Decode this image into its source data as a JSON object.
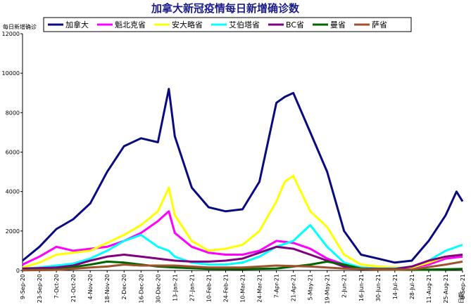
{
  "chart_data": {
    "type": "line",
    "title": "加拿大新冠疫情每日新增确诊数",
    "ylabel": "每日新增确诊",
    "xlabel_suffix": "日期",
    "ylim": [
      0,
      12000
    ],
    "yticks": [
      0,
      2000,
      4000,
      6000,
      8000,
      10000,
      12000
    ],
    "x_range": [
      "2020-09-09",
      "2021-09-08"
    ],
    "xticks": [
      "9-Sep-20",
      "23-Sep-20",
      "7-Oct-20",
      "21-Oct-20",
      "4-Nov-20",
      "18-Nov-20",
      "2-Dec-20",
      "16-Dec-20",
      "30-Dec-20",
      "13-Jan-21",
      "27-Jan-21",
      "10-Feb-21",
      "24-Feb-21",
      "10-Mar-21",
      "24-Mar-21",
      "7-Apr-21",
      "21-Apr-21",
      "5-May-21",
      "19-May-21",
      "2-Jun-21",
      "16-Jun-21",
      "30-Jun-21",
      "14-Jul-21",
      "28-Jul-21",
      "11-Aug-21",
      "25-Aug-21",
      "8-Sep-21"
    ],
    "grid": false,
    "legend_position": "top",
    "series": [
      {
        "name": "加拿大",
        "color": "#0a0a80",
        "x": [
          "2020-09-09",
          "2020-09-23",
          "2020-10-07",
          "2020-10-21",
          "2020-11-04",
          "2020-11-18",
          "2020-12-02",
          "2020-12-16",
          "2020-12-30",
          "2021-01-08",
          "2021-01-13",
          "2021-01-27",
          "2021-02-10",
          "2021-02-24",
          "2021-03-10",
          "2021-03-24",
          "2021-04-07",
          "2021-04-14",
          "2021-04-21",
          "2021-05-05",
          "2021-05-19",
          "2021-06-02",
          "2021-06-16",
          "2021-06-30",
          "2021-07-14",
          "2021-07-28",
          "2021-08-11",
          "2021-08-25",
          "2021-09-03",
          "2021-09-08"
        ],
        "values": [
          500,
          1200,
          2100,
          2600,
          3400,
          5000,
          6300,
          6700,
          6500,
          9200,
          6800,
          4200,
          3200,
          3000,
          3100,
          4500,
          8500,
          8800,
          9000,
          7000,
          5000,
          2000,
          800,
          600,
          400,
          500,
          1500,
          2800,
          4000,
          3500
        ]
      },
      {
        "name": "魁北克省",
        "color": "#ff00ff",
        "x": [
          "2020-09-09",
          "2020-09-23",
          "2020-10-07",
          "2020-10-21",
          "2020-11-04",
          "2020-11-18",
          "2020-12-02",
          "2020-12-16",
          "2020-12-30",
          "2021-01-08",
          "2021-01-13",
          "2021-01-27",
          "2021-02-10",
          "2021-02-24",
          "2021-03-10",
          "2021-03-24",
          "2021-04-07",
          "2021-04-21",
          "2021-05-05",
          "2021-05-19",
          "2021-06-02",
          "2021-06-16",
          "2021-06-30",
          "2021-07-14",
          "2021-07-28",
          "2021-08-11",
          "2021-08-25",
          "2021-09-08"
        ],
        "values": [
          300,
          700,
          1200,
          1000,
          1100,
          1200,
          1500,
          1900,
          2500,
          3000,
          1900,
          1200,
          900,
          800,
          800,
          1000,
          1500,
          1400,
          1100,
          600,
          300,
          150,
          100,
          100,
          150,
          300,
          600,
          700
        ]
      },
      {
        "name": "安大略省",
        "color": "#ffff00",
        "x": [
          "2020-09-09",
          "2020-09-23",
          "2020-10-07",
          "2020-10-21",
          "2020-11-04",
          "2020-11-18",
          "2020-12-02",
          "2020-12-16",
          "2020-12-30",
          "2021-01-08",
          "2021-01-13",
          "2021-01-27",
          "2021-02-10",
          "2021-02-24",
          "2021-03-10",
          "2021-03-24",
          "2021-04-07",
          "2021-04-14",
          "2021-04-21",
          "2021-05-05",
          "2021-05-19",
          "2021-06-02",
          "2021-06-16",
          "2021-06-30",
          "2021-07-14",
          "2021-07-28",
          "2021-08-11",
          "2021-08-25",
          "2021-09-08"
        ],
        "values": [
          150,
          400,
          800,
          900,
          1000,
          1400,
          1800,
          2300,
          3000,
          4200,
          2800,
          1500,
          1000,
          1100,
          1300,
          2000,
          3500,
          4500,
          4800,
          3000,
          2200,
          800,
          300,
          200,
          150,
          150,
          400,
          700,
          800
        ]
      },
      {
        "name": "艾伯塔省",
        "color": "#00ffff",
        "x": [
          "2020-09-09",
          "2020-09-23",
          "2020-10-07",
          "2020-10-21",
          "2020-11-04",
          "2020-11-18",
          "2020-12-02",
          "2020-12-16",
          "2020-12-30",
          "2021-01-08",
          "2021-01-13",
          "2021-01-27",
          "2021-02-10",
          "2021-02-24",
          "2021-03-10",
          "2021-03-24",
          "2021-04-07",
          "2021-04-21",
          "2021-05-05",
          "2021-05-19",
          "2021-06-02",
          "2021-06-16",
          "2021-06-30",
          "2021-07-14",
          "2021-07-28",
          "2021-08-11",
          "2021-08-25",
          "2021-09-08"
        ],
        "values": [
          100,
          150,
          250,
          350,
          600,
          1000,
          1500,
          1800,
          1200,
          1000,
          700,
          400,
          300,
          300,
          400,
          700,
          1200,
          1500,
          2300,
          1200,
          400,
          150,
          100,
          100,
          200,
          500,
          1000,
          1300
        ]
      },
      {
        "name": "BC省",
        "color": "#800080",
        "x": [
          "2020-09-09",
          "2020-09-23",
          "2020-10-07",
          "2020-10-21",
          "2020-11-04",
          "2020-11-18",
          "2020-12-02",
          "2020-12-16",
          "2020-12-30",
          "2021-01-13",
          "2021-01-27",
          "2021-02-10",
          "2021-02-24",
          "2021-03-10",
          "2021-03-24",
          "2021-04-07",
          "2021-04-21",
          "2021-05-05",
          "2021-05-19",
          "2021-06-02",
          "2021-06-16",
          "2021-06-30",
          "2021-07-14",
          "2021-07-28",
          "2021-08-11",
          "2021-08-25",
          "2021-09-08"
        ],
        "values": [
          100,
          120,
          150,
          250,
          500,
          700,
          800,
          700,
          600,
          500,
          450,
          450,
          500,
          600,
          900,
          1200,
          1100,
          800,
          500,
          200,
          100,
          80,
          80,
          200,
          500,
          700,
          800
        ]
      },
      {
        "name": "曼省",
        "color": "#006400",
        "x": [
          "2020-09-09",
          "2020-10-07",
          "2020-11-04",
          "2020-11-18",
          "2020-12-02",
          "2020-12-16",
          "2020-12-30",
          "2021-01-13",
          "2021-02-10",
          "2021-03-10",
          "2021-04-07",
          "2021-05-05",
          "2021-05-19",
          "2021-06-02",
          "2021-06-16",
          "2021-06-30",
          "2021-07-28",
          "2021-08-25",
          "2021-09-08"
        ],
        "values": [
          20,
          50,
          300,
          450,
          400,
          300,
          200,
          150,
          80,
          70,
          100,
          300,
          450,
          300,
          100,
          50,
          30,
          60,
          80
        ]
      },
      {
        "name": "萨省",
        "color": "#a0522d",
        "x": [
          "2020-09-09",
          "2020-10-07",
          "2020-11-04",
          "2020-11-18",
          "2020-12-02",
          "2020-12-16",
          "2020-12-30",
          "2021-01-13",
          "2021-02-10",
          "2021-03-10",
          "2021-04-07",
          "2021-05-05",
          "2021-06-02",
          "2021-06-30",
          "2021-07-28",
          "2021-08-25",
          "2021-09-08"
        ],
        "values": [
          10,
          30,
          150,
          200,
          300,
          250,
          250,
          250,
          150,
          150,
          250,
          200,
          100,
          50,
          50,
          300,
          450
        ]
      }
    ]
  }
}
